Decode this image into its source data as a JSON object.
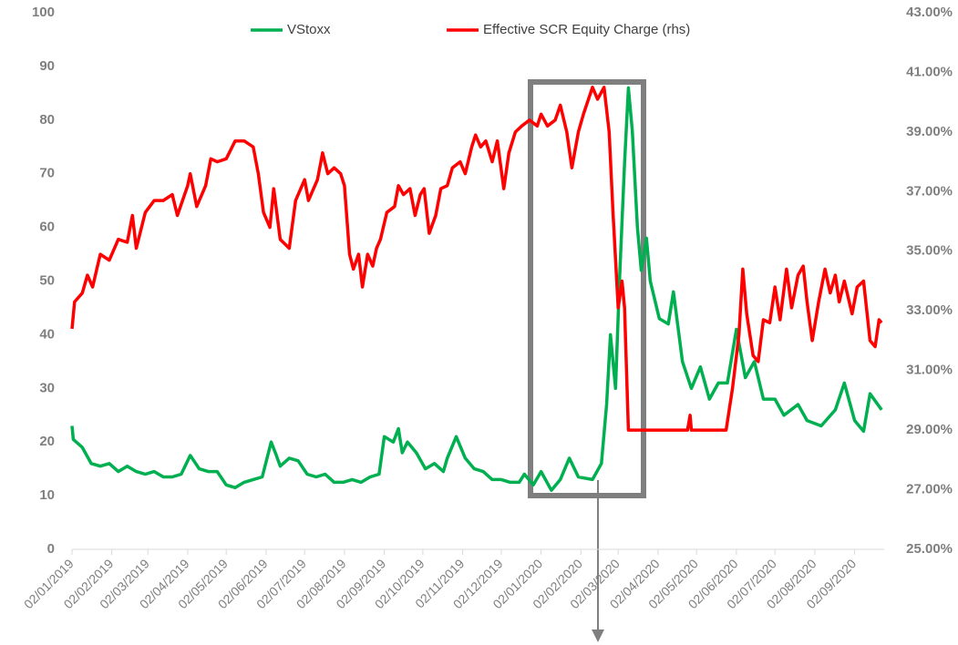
{
  "chart_data": {
    "type": "line",
    "series": [
      {
        "name": "VStoxx",
        "color": "#00b050",
        "axis": "y",
        "x": [
          "02/01/2019",
          "03/01/2019",
          "10/01/2019",
          "17/01/2019",
          "24/01/2019",
          "31/01/2019",
          "07/02/2019",
          "14/02/2019",
          "21/02/2019",
          "28/02/2019",
          "07/03/2019",
          "14/03/2019",
          "21/03/2019",
          "28/03/2019",
          "04/04/2019",
          "11/04/2019",
          "18/04/2019",
          "25/04/2019",
          "02/05/2019",
          "09/05/2019",
          "16/05/2019",
          "23/05/2019",
          "30/05/2019",
          "06/06/2019",
          "10/06/2019",
          "13/06/2019",
          "20/06/2019",
          "27/06/2019",
          "04/07/2019",
          "11/07/2019",
          "18/07/2019",
          "25/07/2019",
          "01/08/2019",
          "08/08/2019",
          "15/08/2019",
          "22/08/2019",
          "29/08/2019",
          "02/09/2019",
          "09/09/2019",
          "13/09/2019",
          "16/09/2019",
          "20/09/2019",
          "27/09/2019",
          "04/10/2019",
          "11/10/2019",
          "18/10/2019",
          "21/10/2019",
          "28/10/2019",
          "04/11/2019",
          "11/11/2019",
          "18/11/2019",
          "25/11/2019",
          "02/12/2019",
          "09/12/2019",
          "16/12/2019",
          "20/12/2019",
          "27/12/2019",
          "02/01/2020",
          "10/01/2020",
          "17/01/2020",
          "24/01/2020",
          "31/01/2020",
          "11/02/2020",
          "18/02/2020",
          "22/02/2020",
          "25/02/2020",
          "29/02/2020",
          "03/03/2020",
          "07/03/2020",
          "10/03/2020",
          "13/03/2020",
          "17/03/2020",
          "20/03/2020",
          "24/03/2020",
          "27/03/2020",
          "03/04/2020",
          "10/04/2020",
          "14/04/2020",
          "21/04/2020",
          "28/04/2020",
          "05/05/2020",
          "12/05/2020",
          "19/05/2020",
          "26/05/2020",
          "02/06/2020",
          "09/06/2020",
          "16/06/2020",
          "23/06/2020",
          "02/07/2020",
          "09/07/2020",
          "20/07/2020",
          "27/07/2020",
          "07/08/2020",
          "18/08/2020",
          "25/08/2020",
          "02/09/2020",
          "09/09/2020",
          "14/09/2020",
          "20/09/2020",
          "23/09/2020"
        ],
        "values": [
          23,
          20.5,
          19,
          16,
          15.5,
          16,
          14.5,
          15.5,
          14.5,
          14,
          14.5,
          13.5,
          13.5,
          14,
          17.5,
          15,
          14.5,
          14.5,
          12,
          11.5,
          12.5,
          13,
          13.5,
          20,
          17.5,
          15.5,
          17,
          16.5,
          14,
          13.5,
          14,
          12.5,
          12.5,
          13,
          12.5,
          13.5,
          14,
          21,
          20,
          22.5,
          18,
          20,
          18,
          15,
          16,
          14.5,
          17,
          21,
          17,
          15,
          14.5,
          13,
          13,
          12.5,
          12.5,
          14,
          12,
          14.5,
          11,
          13,
          17,
          13.5,
          13,
          16,
          27,
          40,
          30,
          50,
          72,
          86,
          78,
          60,
          52,
          58,
          50,
          43,
          42,
          48,
          35,
          30,
          34,
          28,
          31,
          31,
          41,
          32,
          35,
          28,
          28,
          25,
          27,
          24,
          23,
          26,
          31,
          24,
          22,
          29,
          27,
          26
        ]
      },
      {
        "name": "Effective SCR Equity Charge (rhs)",
        "color": "#ff0000",
        "axis": "y2",
        "x": [
          "02/01/2019",
          "04/01/2019",
          "10/01/2019",
          "14/01/2019",
          "18/01/2019",
          "24/01/2019",
          "31/01/2019",
          "07/02/2019",
          "14/02/2019",
          "18/02/2019",
          "21/02/2019",
          "28/02/2019",
          "07/03/2019",
          "14/03/2019",
          "21/03/2019",
          "25/03/2019",
          "02/04/2019",
          "04/04/2019",
          "09/04/2019",
          "16/04/2019",
          "20/04/2019",
          "25/04/2019",
          "02/05/2019",
          "09/05/2019",
          "16/05/2019",
          "23/05/2019",
          "27/05/2019",
          "31/05/2019",
          "05/06/2019",
          "08/06/2019",
          "13/06/2019",
          "20/06/2019",
          "25/06/2019",
          "02/07/2019",
          "05/07/2019",
          "12/07/2019",
          "16/07/2019",
          "20/07/2019",
          "25/07/2019",
          "30/07/2019",
          "02/08/2019",
          "06/08/2019",
          "09/08/2019",
          "13/08/2019",
          "16/08/2019",
          "20/08/2019",
          "24/08/2019",
          "27/08/2019",
          "30/08/2019",
          "04/09/2019",
          "10/09/2019",
          "13/09/2019",
          "17/09/2019",
          "22/09/2019",
          "26/09/2019",
          "30/09/2019",
          "03/10/2019",
          "07/10/2019",
          "12/10/2019",
          "16/10/2019",
          "21/10/2019",
          "25/10/2019",
          "31/10/2019",
          "04/11/2019",
          "09/11/2019",
          "12/11/2019",
          "16/11/2019",
          "20/11/2019",
          "25/11/2019",
          "29/11/2019",
          "04/12/2019",
          "08/12/2019",
          "13/12/2019",
          "18/12/2019",
          "24/12/2019",
          "30/12/2019",
          "02/01/2020",
          "07/01/2020",
          "13/01/2020",
          "17/01/2020",
          "22/01/2020",
          "26/01/2020",
          "31/01/2020",
          "04/02/2020",
          "11/02/2020",
          "15/02/2020",
          "20/02/2020",
          "24/02/2020",
          "27/02/2020",
          "02/03/2020",
          "05/03/2020",
          "07/03/2020",
          "10/03/2020",
          "14/03/2020",
          "10/04/2020",
          "25/04/2020",
          "27/04/2020",
          "28/04/2020",
          "25/05/2020",
          "30/05/2020",
          "04/06/2020",
          "07/06/2020",
          "10/06/2020",
          "15/06/2020",
          "19/06/2020",
          "23/06/2020",
          "28/06/2020",
          "02/07/2020",
          "06/07/2020",
          "11/07/2020",
          "15/07/2020",
          "20/07/2020",
          "24/07/2020",
          "27/07/2020",
          "31/07/2020",
          "05/08/2020",
          "10/08/2020",
          "14/08/2020",
          "18/08/2020",
          "21/08/2020",
          "25/08/2020",
          "31/08/2020",
          "04/09/2020",
          "09/09/2020",
          "14/09/2020",
          "18/09/2020",
          "21/09/2020",
          "23/09/2020"
        ],
        "values": [
          32.4,
          33.3,
          33.6,
          34.2,
          33.8,
          34.9,
          34.7,
          35.4,
          35.3,
          36.2,
          35.1,
          36.3,
          36.7,
          36.7,
          36.9,
          36.2,
          37.2,
          37.6,
          36.5,
          37.2,
          38.1,
          38,
          38.1,
          38.7,
          38.7,
          38.5,
          37.6,
          36.3,
          35.8,
          37.1,
          35.4,
          35.1,
          36.7,
          37.4,
          36.7,
          37.4,
          38.3,
          37.6,
          37.8,
          37.6,
          37.2,
          34.9,
          34.4,
          34.9,
          33.8,
          34.9,
          34.5,
          35.1,
          35.4,
          36.3,
          36.5,
          37.2,
          36.9,
          37.1,
          36.2,
          36.9,
          37.1,
          35.6,
          36.2,
          37.1,
          37.2,
          37.8,
          38,
          37.6,
          38.5,
          38.9,
          38.5,
          38.7,
          38,
          38.7,
          37.1,
          38.3,
          39,
          39.2,
          39.4,
          39.2,
          39.6,
          39.2,
          39.4,
          39.9,
          39,
          37.8,
          39,
          39.6,
          40.5,
          40.1,
          40.5,
          39,
          36.3,
          33.1,
          34,
          33.1,
          29,
          29,
          29,
          29,
          29.5,
          29,
          29,
          30.4,
          32.2,
          34.4,
          32.9,
          31.5,
          31.3,
          32.7,
          32.6,
          33.8,
          32.7,
          34.4,
          33.1,
          34.2,
          34.5,
          33.3,
          32,
          33.3,
          34.4,
          33.6,
          34.2,
          33.3,
          34,
          32.9,
          33.8,
          34,
          32,
          31.8,
          32.7,
          32.6
        ]
      }
    ],
    "xlim": [
      "02/01/2019",
      "25/09/2020"
    ],
    "xticks": [
      "02/01/2019",
      "02/02/2019",
      "02/03/2019",
      "02/04/2019",
      "02/05/2019",
      "02/06/2019",
      "02/07/2019",
      "02/08/2019",
      "02/09/2019",
      "02/10/2019",
      "02/11/2019",
      "02/12/2019",
      "02/01/2020",
      "02/02/2020",
      "02/03/2020",
      "02/04/2020",
      "02/05/2020",
      "02/06/2020",
      "02/07/2020",
      "02/08/2020",
      "02/09/2020"
    ],
    "ylim": [
      0,
      100
    ],
    "yticks": [
      0,
      10,
      20,
      30,
      40,
      50,
      60,
      70,
      80,
      90,
      100
    ],
    "y2lim": [
      25,
      43
    ],
    "y2ticks": [
      {
        "value": 25,
        "label": "25.00%"
      },
      {
        "value": 27,
        "label": "27.00%"
      },
      {
        "value": 29,
        "label": "29.00%"
      },
      {
        "value": 31,
        "label": "31.00%"
      },
      {
        "value": 33,
        "label": "33.00%"
      },
      {
        "value": 35,
        "label": "35.00%"
      },
      {
        "value": 37,
        "label": "37.00%"
      },
      {
        "value": 39,
        "label": "39.00%"
      },
      {
        "value": 41,
        "label": "41.00%"
      },
      {
        "value": 43,
        "label": "43.00%"
      }
    ],
    "legend": "top"
  }
}
